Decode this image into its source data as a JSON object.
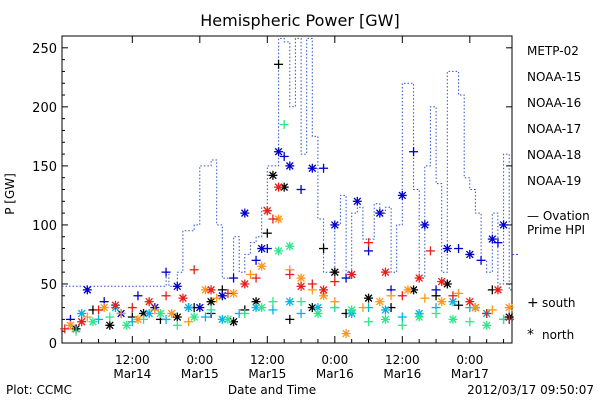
{
  "chart_data": {
    "type": "scatter",
    "title": "Hemispheric Power [GW]",
    "xlabel": "Date and Time",
    "ylabel": "P [GW]",
    "ylim": [
      0,
      260
    ],
    "xlim": [
      -0.5,
      79.5
    ],
    "x_unit": "hours since 2012-03-14 00:00",
    "y_ticks": [
      0,
      50,
      100,
      150,
      200,
      250
    ],
    "x_ticks": [
      {
        "x": 12,
        "line1": "12:00",
        "line2": "Mar14"
      },
      {
        "x": 24,
        "line1": "0:00",
        "line2": "Mar15"
      },
      {
        "x": 36,
        "line1": "12:00",
        "line2": "Mar15"
      },
      {
        "x": 48,
        "line1": "0:00",
        "line2": "Mar16"
      },
      {
        "x": 60,
        "line1": "12:00",
        "line2": "Mar16"
      },
      {
        "x": 72,
        "line1": "0:00",
        "line2": "Mar17"
      }
    ],
    "footer_left": "Plot: CCMC",
    "footer_right": "2012/03/17 09:50:07",
    "legend": [
      {
        "name": "METP-02",
        "color": "#000000"
      },
      {
        "name": "NOAA-15",
        "color": "#0000c8"
      },
      {
        "name": "NOAA-16",
        "color": "#00b4e6"
      },
      {
        "name": "NOAA-17",
        "color": "#2de68c"
      },
      {
        "name": "NOAA-18",
        "color": "#ff9619"
      },
      {
        "name": "NOAA-19",
        "color": "#e61e19"
      }
    ],
    "ovation": {
      "label_line1": "— Ovation",
      "label_line2": "Prime HPI",
      "color": "#2850c8",
      "points": [
        [
          -0.5,
          48
        ],
        [
          18,
          48
        ],
        [
          18,
          60
        ],
        [
          18.5,
          60
        ],
        [
          18.5,
          48
        ],
        [
          20,
          48
        ],
        [
          20,
          60
        ],
        [
          21,
          60
        ],
        [
          21,
          95
        ],
        [
          23,
          95
        ],
        [
          23,
          100
        ],
        [
          24,
          100
        ],
        [
          24,
          150
        ],
        [
          26,
          150
        ],
        [
          26,
          155
        ],
        [
          27,
          155
        ],
        [
          27,
          100
        ],
        [
          28,
          100
        ],
        [
          28,
          55
        ],
        [
          30,
          55
        ],
        [
          30,
          90
        ],
        [
          31,
          90
        ],
        [
          31,
          60
        ],
        [
          32,
          60
        ],
        [
          32,
          75
        ],
        [
          33,
          75
        ],
        [
          33,
          85
        ],
        [
          34,
          85
        ],
        [
          34,
          90
        ],
        [
          35,
          90
        ],
        [
          35,
          115
        ],
        [
          36,
          115
        ],
        [
          36,
          150
        ],
        [
          38,
          150
        ],
        [
          38,
          258
        ],
        [
          39,
          258
        ],
        [
          39,
          255
        ],
        [
          40,
          255
        ],
        [
          40,
          200
        ],
        [
          41,
          200
        ],
        [
          41,
          258
        ],
        [
          42,
          258
        ],
        [
          42,
          160
        ],
        [
          43,
          160
        ],
        [
          43,
          258
        ],
        [
          44,
          258
        ],
        [
          44,
          175
        ],
        [
          45,
          175
        ],
        [
          45,
          105
        ],
        [
          46,
          105
        ],
        [
          46,
          60
        ],
        [
          48,
          60
        ],
        [
          48,
          100
        ],
        [
          49,
          100
        ],
        [
          49,
          125
        ],
        [
          50,
          125
        ],
        [
          50,
          60
        ],
        [
          51,
          60
        ],
        [
          51,
          110
        ],
        [
          52,
          110
        ],
        [
          52,
          115
        ],
        [
          53,
          115
        ],
        [
          53,
          88
        ],
        [
          55,
          88
        ],
        [
          55,
          118
        ],
        [
          56,
          118
        ],
        [
          56,
          110
        ],
        [
          57,
          110
        ],
        [
          57,
          115
        ],
        [
          58,
          115
        ],
        [
          58,
          60
        ],
        [
          59,
          60
        ],
        [
          59,
          100
        ],
        [
          60,
          100
        ],
        [
          60,
          220
        ],
        [
          62,
          220
        ],
        [
          62,
          130
        ],
        [
          63,
          130
        ],
        [
          63,
          55
        ],
        [
          64,
          55
        ],
        [
          64,
          150
        ],
        [
          65,
          150
        ],
        [
          65,
          200
        ],
        [
          66,
          200
        ],
        [
          66,
          135
        ],
        [
          67,
          135
        ],
        [
          67,
          60
        ],
        [
          68,
          60
        ],
        [
          68,
          230
        ],
        [
          70,
          230
        ],
        [
          70,
          210
        ],
        [
          71,
          210
        ],
        [
          71,
          140
        ],
        [
          72,
          140
        ],
        [
          72,
          130
        ],
        [
          73,
          130
        ],
        [
          73,
          110
        ],
        [
          74,
          110
        ],
        [
          74,
          70
        ],
        [
          75,
          70
        ],
        [
          75,
          60
        ],
        [
          76,
          60
        ],
        [
          76,
          110
        ],
        [
          77,
          110
        ],
        [
          77,
          50
        ],
        [
          78,
          50
        ],
        [
          78,
          160
        ],
        [
          79,
          160
        ],
        [
          79,
          45
        ],
        [
          79.5,
          45
        ]
      ]
    },
    "series": [
      {
        "name": "METP-02",
        "color": "#000000",
        "marker": "mixed",
        "points": [
          [
            2,
            12
          ],
          [
            5,
            28
          ],
          [
            8,
            15
          ],
          [
            12,
            22
          ],
          [
            14,
            25
          ],
          [
            17,
            20
          ],
          [
            20,
            22
          ],
          [
            23,
            30
          ],
          [
            26,
            35
          ],
          [
            28,
            45
          ],
          [
            30,
            18
          ],
          [
            32,
            28
          ],
          [
            34,
            35
          ],
          [
            36,
            93
          ],
          [
            37,
            142
          ],
          [
            38,
            236
          ],
          [
            39,
            132
          ],
          [
            40,
            20
          ],
          [
            44,
            30
          ],
          [
            46,
            80
          ],
          [
            48,
            60
          ],
          [
            50,
            25
          ],
          [
            54,
            38
          ],
          [
            58,
            30
          ],
          [
            62,
            45
          ],
          [
            66,
            40
          ],
          [
            68,
            50
          ],
          [
            70,
            32
          ],
          [
            73,
            30
          ],
          [
            76,
            45
          ],
          [
            79,
            22
          ]
        ]
      },
      {
        "name": "NOAA-15",
        "color": "#0000c8",
        "marker": "mixed",
        "points": [
          [
            1,
            20
          ],
          [
            4,
            45
          ],
          [
            7,
            35
          ],
          [
            10,
            25
          ],
          [
            13,
            40
          ],
          [
            16,
            30
          ],
          [
            18,
            60
          ],
          [
            20,
            48
          ],
          [
            22,
            30
          ],
          [
            24,
            30
          ],
          [
            26,
            25
          ],
          [
            28,
            40
          ],
          [
            30,
            55
          ],
          [
            32,
            110
          ],
          [
            34,
            70
          ],
          [
            35,
            80
          ],
          [
            36,
            80
          ],
          [
            38,
            162
          ],
          [
            39,
            158
          ],
          [
            40,
            150
          ],
          [
            42,
            130
          ],
          [
            44,
            148
          ],
          [
            46,
            148
          ],
          [
            48,
            100
          ],
          [
            50,
            55
          ],
          [
            52,
            120
          ],
          [
            54,
            78
          ],
          [
            56,
            110
          ],
          [
            58,
            45
          ],
          [
            60,
            125
          ],
          [
            62,
            162
          ],
          [
            64,
            100
          ],
          [
            66,
            45
          ],
          [
            68,
            80
          ],
          [
            70,
            80
          ],
          [
            72,
            75
          ],
          [
            74,
            70
          ],
          [
            76,
            88
          ],
          [
            77,
            85
          ],
          [
            78,
            100
          ],
          [
            79,
            20
          ]
        ]
      },
      {
        "name": "NOAA-16",
        "color": "#00b4e6",
        "marker": "mixed",
        "points": [
          [
            3,
            25
          ],
          [
            6,
            20
          ],
          [
            9,
            30
          ],
          [
            12,
            18
          ],
          [
            15,
            25
          ],
          [
            18,
            20
          ],
          [
            22,
            30
          ],
          [
            25,
            22
          ],
          [
            28,
            20
          ],
          [
            31,
            25
          ],
          [
            34,
            30
          ],
          [
            37,
            28
          ],
          [
            40,
            35
          ],
          [
            42,
            25
          ],
          [
            45,
            30
          ],
          [
            48,
            30
          ],
          [
            51,
            25
          ],
          [
            54,
            30
          ],
          [
            57,
            28
          ],
          [
            60,
            22
          ],
          [
            63,
            25
          ],
          [
            66,
            30
          ],
          [
            69,
            35
          ],
          [
            72,
            30
          ],
          [
            75,
            25
          ],
          [
            78,
            20
          ]
        ]
      },
      {
        "name": "NOAA-17",
        "color": "#2de68c",
        "marker": "mixed",
        "points": [
          [
            2,
            10
          ],
          [
            5,
            18
          ],
          [
            8,
            22
          ],
          [
            11,
            15
          ],
          [
            14,
            20
          ],
          [
            17,
            25
          ],
          [
            20,
            15
          ],
          [
            23,
            22
          ],
          [
            26,
            28
          ],
          [
            29,
            20
          ],
          [
            32,
            25
          ],
          [
            35,
            30
          ],
          [
            37,
            35
          ],
          [
            38,
            78
          ],
          [
            39,
            185
          ],
          [
            40,
            82
          ],
          [
            42,
            35
          ],
          [
            45,
            25
          ],
          [
            48,
            30
          ],
          [
            51,
            28
          ],
          [
            54,
            18
          ],
          [
            57,
            20
          ],
          [
            60,
            15
          ],
          [
            63,
            22
          ],
          [
            66,
            25
          ],
          [
            69,
            20
          ],
          [
            72,
            18
          ],
          [
            75,
            15
          ],
          [
            78,
            20
          ]
        ]
      },
      {
        "name": "NOAA-18",
        "color": "#ff9619",
        "marker": "mixed",
        "points": [
          [
            1,
            15
          ],
          [
            4,
            22
          ],
          [
            7,
            30
          ],
          [
            10,
            25
          ],
          [
            13,
            20
          ],
          [
            16,
            28
          ],
          [
            19,
            25
          ],
          [
            22,
            18
          ],
          [
            25,
            45
          ],
          [
            27,
            38
          ],
          [
            30,
            42
          ],
          [
            33,
            58
          ],
          [
            35,
            65
          ],
          [
            36,
            112
          ],
          [
            38,
            105
          ],
          [
            40,
            62
          ],
          [
            42,
            55
          ],
          [
            44,
            45
          ],
          [
            46,
            40
          ],
          [
            48,
            35
          ],
          [
            50,
            8
          ],
          [
            53,
            30
          ],
          [
            56,
            35
          ],
          [
            58,
            40
          ],
          [
            61,
            45
          ],
          [
            64,
            38
          ],
          [
            67,
            35
          ],
          [
            70,
            42
          ],
          [
            73,
            30
          ],
          [
            76,
            28
          ],
          [
            79,
            30
          ]
        ]
      },
      {
        "name": "NOAA-19",
        "color": "#e61e19",
        "marker": "mixed",
        "points": [
          [
            0,
            12
          ],
          [
            3,
            18
          ],
          [
            6,
            28
          ],
          [
            9,
            32
          ],
          [
            12,
            30
          ],
          [
            15,
            35
          ],
          [
            18,
            40
          ],
          [
            21,
            38
          ],
          [
            23,
            62
          ],
          [
            26,
            45
          ],
          [
            29,
            42
          ],
          [
            32,
            50
          ],
          [
            34,
            55
          ],
          [
            36,
            112
          ],
          [
            37,
            105
          ],
          [
            38,
            132
          ],
          [
            40,
            58
          ],
          [
            42,
            48
          ],
          [
            44,
            50
          ],
          [
            46,
            45
          ],
          [
            48,
            52
          ],
          [
            51,
            58
          ],
          [
            54,
            85
          ],
          [
            57,
            60
          ],
          [
            60,
            40
          ],
          [
            63,
            55
          ],
          [
            65,
            78
          ],
          [
            67,
            52
          ],
          [
            69,
            40
          ],
          [
            72,
            35
          ],
          [
            75,
            25
          ],
          [
            77,
            45
          ],
          [
            79,
            20
          ]
        ]
      }
    ],
    "markers_legend": [
      {
        "symbol": "+",
        "label": "south"
      },
      {
        "symbol": "*",
        "label": "north"
      }
    ],
    "grid": false,
    "legend_position": "right"
  }
}
